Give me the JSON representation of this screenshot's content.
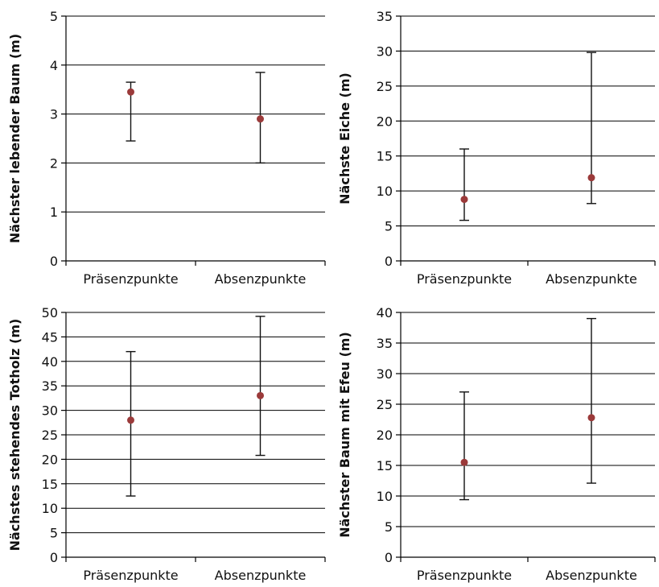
{
  "chart_data": [
    {
      "type": "scatter",
      "ylabel": "Nächster lebender Baum (m)",
      "categories": [
        "Präsenzpunkte",
        "Absenzpunkte"
      ],
      "ylim": [
        0,
        5
      ],
      "ytick_step": 1,
      "grid": true,
      "series": [
        {
          "values": [
            3.45,
            2.9
          ],
          "error_low": [
            2.45,
            2.0
          ],
          "error_high": [
            3.65,
            3.85
          ],
          "color": "#9b3a3a"
        }
      ]
    },
    {
      "type": "scatter",
      "ylabel": "Nächste Eiche (m)",
      "categories": [
        "Präsenzpunkte",
        "Absenzpunkte"
      ],
      "ylim": [
        0,
        35
      ],
      "ytick_step": 5,
      "grid": true,
      "series": [
        {
          "values": [
            8.8,
            11.9
          ],
          "error_low": [
            5.8,
            8.2
          ],
          "error_high": [
            16.0,
            29.8
          ],
          "color": "#9b3a3a"
        }
      ]
    },
    {
      "type": "scatter",
      "ylabel": "Nächstes stehendes Totholz (m)",
      "categories": [
        "Präsenzpunkte",
        "Absenzpunkte"
      ],
      "ylim": [
        0,
        50
      ],
      "ytick_step": 5,
      "grid": true,
      "series": [
        {
          "values": [
            28.0,
            33.0
          ],
          "error_low": [
            12.5,
            20.8
          ],
          "error_high": [
            42.0,
            49.2
          ],
          "color": "#9b3a3a"
        }
      ]
    },
    {
      "type": "scatter",
      "ylabel": "Nächster Baum mit Efeu (m)",
      "categories": [
        "Präsenzpunkte",
        "Absenzpunkte"
      ],
      "ylim": [
        0,
        40
      ],
      "ytick_step": 5,
      "grid": true,
      "series": [
        {
          "values": [
            15.5,
            22.8
          ],
          "error_low": [
            9.4,
            12.1
          ],
          "error_high": [
            27.0,
            39.0
          ],
          "color": "#9b3a3a"
        }
      ]
    }
  ]
}
